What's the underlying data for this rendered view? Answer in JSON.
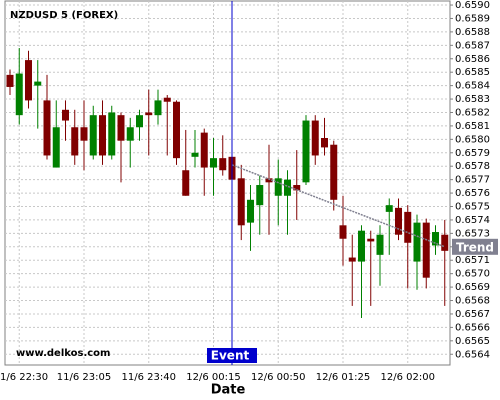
{
  "chart_data": {
    "type": "candlestick",
    "title": "NZDUSD 5 (FOREX)",
    "watermark": "www.delkos.com",
    "x_label": "Date",
    "categories": [
      null,
      "1/6 22:30",
      null,
      null,
      null,
      null,
      null,
      null,
      "11/6 23:05",
      null,
      null,
      null,
      null,
      null,
      null,
      "11/6 23:40",
      null,
      null,
      null,
      null,
      null,
      null,
      "12/6 00:15",
      null,
      null,
      null,
      null,
      null,
      null,
      "12/6 00:50",
      null,
      null,
      null,
      null,
      null,
      null,
      "12/6 01:25",
      null,
      null,
      null,
      null,
      null,
      null,
      "12/6 02:00",
      null,
      null,
      null,
      null
    ],
    "open": [
      0.65848,
      0.65818,
      0.65859,
      0.6584,
      0.65829,
      0.65779,
      0.65822,
      0.65809,
      0.65809,
      0.65788,
      0.65818,
      0.65788,
      0.65818,
      0.65799,
      0.65809,
      0.6582,
      0.65818,
      0.65831,
      0.65828,
      0.65777,
      0.65787,
      0.65805,
      0.65779,
      0.65786,
      0.65787,
      0.65771,
      0.65738,
      0.65751,
      0.65771,
      0.65758,
      0.65758,
      0.65766,
      0.65768,
      0.65814,
      0.65801,
      0.65796,
      0.65736,
      0.65712,
      0.65709,
      0.65726,
      0.65714,
      0.65746,
      0.65749,
      0.65746,
      0.65709,
      0.65738,
      0.65721,
      0.65729
    ],
    "high": [
      0.65852,
      0.65868,
      0.65866,
      0.65859,
      0.65848,
      0.65829,
      0.65829,
      0.65822,
      0.65829,
      0.65825,
      0.65829,
      0.65825,
      0.6582,
      0.65816,
      0.65822,
      0.65837,
      0.65837,
      0.65833,
      0.65829,
      0.65807,
      0.65807,
      0.65808,
      0.65801,
      0.65803,
      0.65803,
      0.65781,
      0.65766,
      0.65773,
      0.65796,
      0.65785,
      0.65777,
      0.65792,
      0.65818,
      0.65818,
      0.65816,
      0.65799,
      0.65758,
      0.65729,
      0.65736,
      0.65732,
      0.65736,
      0.65756,
      0.65756,
      0.65751,
      0.65744,
      0.65741,
      0.65736,
      0.6574
    ],
    "low": [
      0.65833,
      0.65811,
      0.65823,
      0.65808,
      0.65785,
      0.65779,
      0.65799,
      0.65781,
      0.65777,
      0.65785,
      0.65781,
      0.65785,
      0.65768,
      0.65779,
      0.65799,
      0.65788,
      0.65811,
      0.65788,
      0.65781,
      0.65758,
      0.65779,
      0.65758,
      0.65758,
      0.65773,
      0.65729,
      0.65725,
      0.65717,
      0.65729,
      0.65729,
      0.65736,
      0.65729,
      0.6574,
      0.65766,
      0.65781,
      0.65788,
      0.65747,
      0.65706,
      0.65676,
      0.65667,
      0.65676,
      0.65691,
      0.65714,
      0.65725,
      0.65689,
      0.65688,
      0.65689,
      0.65714,
      0.65676
    ],
    "close": [
      0.65839,
      0.65849,
      0.65829,
      0.65843,
      0.65788,
      0.65809,
      0.65814,
      0.65788,
      0.65799,
      0.65818,
      0.65788,
      0.6582,
      0.65799,
      0.65809,
      0.65818,
      0.65818,
      0.65829,
      0.65828,
      0.65786,
      0.65758,
      0.6579,
      0.65779,
      0.65786,
      0.65777,
      0.6577,
      0.65736,
      0.65755,
      0.65766,
      0.65768,
      0.65771,
      0.6577,
      0.65762,
      0.65814,
      0.65788,
      0.65794,
      0.65755,
      0.65726,
      0.65709,
      0.65732,
      0.65724,
      0.65729,
      0.65751,
      0.65729,
      0.65723,
      0.65738,
      0.65697,
      0.65731,
      0.65717
    ],
    "up_color": "#008000",
    "down_color": "#800000",
    "ylim": [
      0.65632,
      0.65903
    ],
    "yticks": [
      0.6564,
      0.6565,
      0.6566,
      0.6567,
      0.6568,
      0.6569,
      {
        "value": 0.657,
        "label": "0.6570"
      },
      0.6571,
      0.6572,
      0.6573,
      0.6574,
      0.6575,
      0.6576,
      0.6577,
      0.6578,
      0.6579,
      {
        "value": 0.658,
        "label": "0.6580"
      },
      0.6581,
      0.6582,
      0.6583,
      0.6584,
      0.6585,
      0.6586,
      0.6587,
      0.6588,
      0.6589,
      {
        "value": 0.659,
        "label": "0.6590"
      }
    ],
    "grid": true,
    "event": {
      "label": "Event",
      "index": 24,
      "color": "#0000cc"
    },
    "trendline": {
      "label": "Trend",
      "start_index": 24,
      "end_index": 47,
      "values": [
        0.65781,
        0.6572
      ],
      "color": "#808090"
    }
  }
}
